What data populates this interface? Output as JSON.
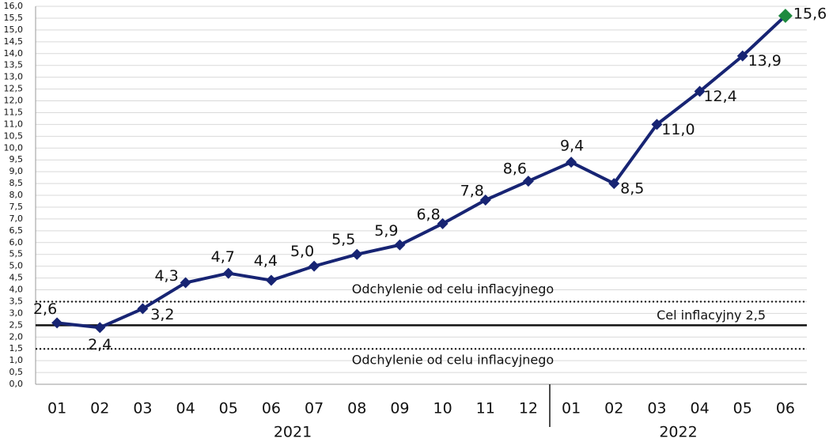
{
  "chart_data": {
    "type": "line",
    "categories": [
      "01",
      "02",
      "03",
      "04",
      "05",
      "06",
      "07",
      "08",
      "09",
      "10",
      "11",
      "12",
      "01",
      "02",
      "03",
      "04",
      "05",
      "06"
    ],
    "x_groups": [
      "2021",
      "2022"
    ],
    "series": [
      {
        "color": "#172473",
        "values": [
          2.6,
          2.4,
          3.2,
          4.3,
          4.7,
          4.4,
          5.0,
          5.5,
          5.9,
          6.8,
          7.8,
          8.6,
          9.4,
          8.5,
          11.0,
          12.4,
          13.9,
          15.6
        ],
        "value_labels": [
          "2,6",
          "2,4",
          "3,2",
          "4,3",
          "4,7",
          "4,4",
          "5,0",
          "5,5",
          "5,9",
          "6,8",
          "7,8",
          "8,6",
          "9,4",
          "8,5",
          "11,0",
          "12,4",
          "13,9",
          "15,6"
        ],
        "marker_colors": [
          "#172473",
          "#172473",
          "#172473",
          "#172473",
          "#172473",
          "#172473",
          "#172473",
          "#172473",
          "#172473",
          "#172473",
          "#172473",
          "#172473",
          "#172473",
          "#172473",
          "#172473",
          "#172473",
          "#172473",
          "#1e8a3e"
        ]
      }
    ],
    "reference_lines": [
      {
        "value": 3.5,
        "label": "Odchylenie od celu inflacyjnego",
        "style": "dotted"
      },
      {
        "value": 2.5,
        "label": "Cel inflacyjny 2,5",
        "style": "solid"
      },
      {
        "value": 1.5,
        "label": "Odchylenie od celu inflacyjnego",
        "style": "dotted"
      }
    ],
    "ylim": [
      0,
      16
    ],
    "yticks": [
      {
        "value": 0,
        "label": "0,0"
      },
      {
        "value": 0.5,
        "label": "0,5"
      },
      {
        "value": 1,
        "label": "1,0"
      },
      {
        "value": 1.5,
        "label": "1,5"
      },
      {
        "value": 2,
        "label": "2,0"
      },
      {
        "value": 2.5,
        "label": "2,5"
      },
      {
        "value": 3,
        "label": "3,0"
      },
      {
        "value": 3.5,
        "label": "3,5"
      },
      {
        "value": 4,
        "label": "4,0"
      },
      {
        "value": 4.5,
        "label": "4,5"
      },
      {
        "value": 5,
        "label": "5,0"
      },
      {
        "value": 5.5,
        "label": "5,5"
      },
      {
        "value": 6,
        "label": "6,0"
      },
      {
        "value": 6.5,
        "label": "6,5"
      },
      {
        "value": 7,
        "label": "7,0"
      },
      {
        "value": 7.5,
        "label": "7,5"
      },
      {
        "value": 8,
        "label": "8,0"
      },
      {
        "value": 8.5,
        "label": "8,5"
      },
      {
        "value": 9,
        "label": "9,0"
      },
      {
        "value": 9.5,
        "label": "9,5"
      },
      {
        "value": 10,
        "label": "10,0"
      },
      {
        "value": 10.5,
        "label": "10,5"
      },
      {
        "value": 11,
        "label": "11,0"
      },
      {
        "value": 11.5,
        "label": "11,5"
      },
      {
        "value": 12,
        "label": "12,0"
      },
      {
        "value": 12.5,
        "label": "12,5"
      },
      {
        "value": 13,
        "label": "13,0"
      },
      {
        "value": 13.5,
        "label": "13,5"
      },
      {
        "value": 14,
        "label": "14,0"
      },
      {
        "value": 14.5,
        "label": "14,5"
      },
      {
        "value": 15,
        "label": "15,0"
      },
      {
        "value": 15.5,
        "label": "15,5"
      },
      {
        "value": 16,
        "label": "16,0"
      }
    ],
    "grid": true
  }
}
